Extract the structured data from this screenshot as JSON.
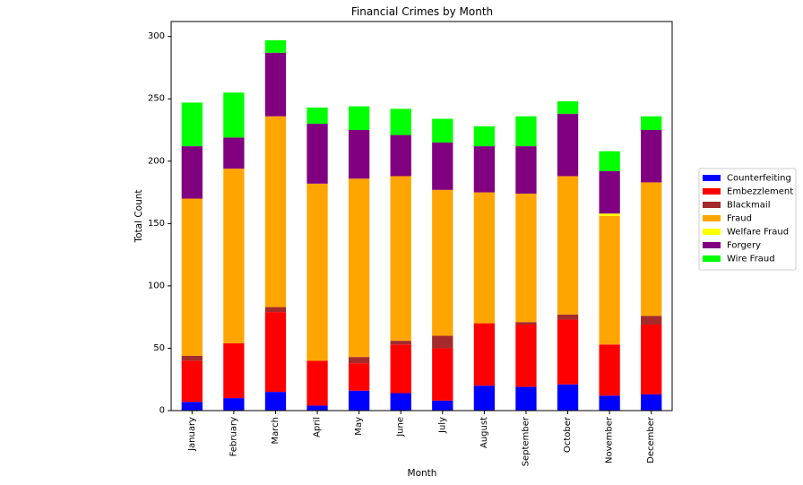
{
  "chart_data": {
    "type": "bar",
    "stacked": true,
    "title": "Financial Crimes by Month",
    "xlabel": "Month",
    "ylabel": "Total Count",
    "ylim": [
      0,
      312
    ],
    "yticks": [
      0,
      50,
      100,
      150,
      200,
      250,
      300
    ],
    "grid": false,
    "legend_position": "right",
    "categories": [
      "January",
      "February",
      "March",
      "April",
      "May",
      "June",
      "July",
      "August",
      "September",
      "October",
      "November",
      "December"
    ],
    "series": [
      {
        "name": "Counterfeiting",
        "color": "#0000ff",
        "values": [
          7,
          10,
          15,
          4,
          16,
          14,
          8,
          20,
          19,
          21,
          12,
          13
        ]
      },
      {
        "name": "Embezzlement",
        "color": "#ff0000",
        "values": [
          33,
          44,
          64,
          36,
          22,
          39,
          42,
          50,
          50,
          52,
          41,
          56
        ]
      },
      {
        "name": "Blackmail",
        "color": "#a52a2a",
        "values": [
          4,
          0,
          4,
          0,
          5,
          3,
          10,
          0,
          2,
          4,
          0,
          7
        ]
      },
      {
        "name": "Fraud",
        "color": "#ffa500",
        "values": [
          126,
          140,
          153,
          142,
          143,
          132,
          117,
          105,
          103,
          111,
          103,
          107
        ]
      },
      {
        "name": "Welfare Fraud",
        "color": "#ffff00",
        "values": [
          0,
          0,
          0,
          0,
          0,
          0,
          0,
          0,
          0,
          0,
          2,
          0
        ]
      },
      {
        "name": "Forgery",
        "color": "#800080",
        "values": [
          42,
          25,
          51,
          48,
          39,
          33,
          38,
          37,
          38,
          50,
          34,
          42
        ]
      },
      {
        "name": "Wire Fraud",
        "color": "#00ff00",
        "values": [
          35,
          36,
          10,
          13,
          19,
          21,
          19,
          16,
          24,
          10,
          16,
          11
        ]
      }
    ]
  }
}
